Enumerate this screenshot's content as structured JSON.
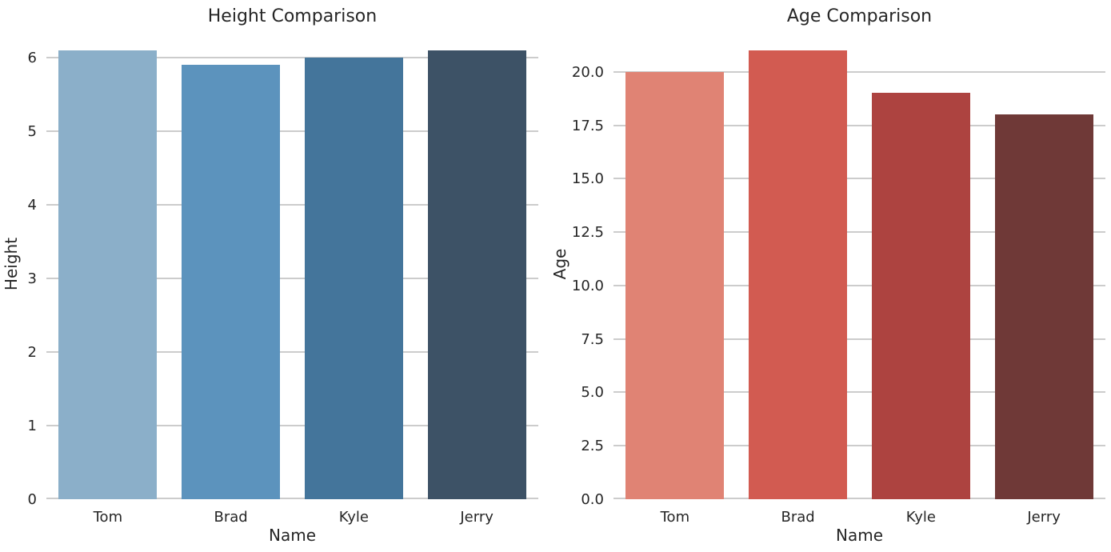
{
  "figure": {
    "background_color": "#ffffff",
    "text_color": "#262626",
    "grid_color": "#cccccc"
  },
  "chart_data": [
    {
      "type": "bar",
      "title": "Height Comparison",
      "xlabel": "Name",
      "ylabel": "Height",
      "categories": [
        "Tom",
        "Brad",
        "Kyle",
        "Jerry"
      ],
      "values": [
        6.1,
        5.9,
        6.0,
        6.1
      ],
      "bar_colors": [
        "#8BAFC9",
        "#5C93BD",
        "#44759B",
        "#3D5266"
      ],
      "ytick_values": [
        0,
        1,
        2,
        3,
        4,
        5,
        6
      ],
      "ytick_labels": [
        "0",
        "1",
        "2",
        "3",
        "4",
        "5",
        "6"
      ],
      "ylim": [
        0,
        6.405
      ],
      "grid": true,
      "legend": null
    },
    {
      "type": "bar",
      "title": "Age Comparison",
      "xlabel": "Name",
      "ylabel": "Age",
      "categories": [
        "Tom",
        "Brad",
        "Kyle",
        "Jerry"
      ],
      "values": [
        20,
        21,
        19,
        18
      ],
      "bar_colors": [
        "#E08374",
        "#D25B51",
        "#AD4340",
        "#6F3937"
      ],
      "ytick_values": [
        0,
        2.5,
        5,
        7.5,
        10,
        12.5,
        15,
        17.5,
        20
      ],
      "ytick_labels": [
        "0.0",
        "2.5",
        "5.0",
        "7.5",
        "10.0",
        "12.5",
        "15.0",
        "17.5",
        "20.0"
      ],
      "ylim": [
        0,
        22.05
      ],
      "grid": true,
      "legend": null
    }
  ]
}
